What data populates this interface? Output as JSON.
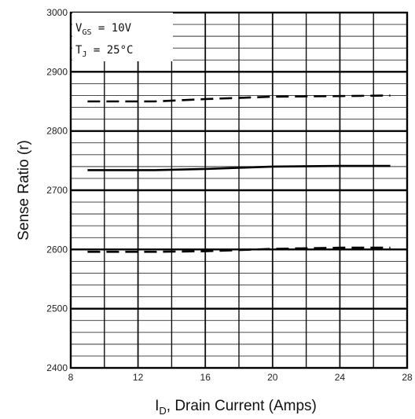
{
  "chart_data": {
    "type": "line",
    "title": "",
    "xlabel": {
      "main": "I",
      "sub": "D",
      "rest": ", Drain Current (Amps)"
    },
    "ylabel": "Sense Ratio (r)",
    "xlim": [
      8,
      28
    ],
    "ylim": [
      2400,
      3000
    ],
    "x_ticks": [
      8,
      12,
      16,
      20,
      24,
      28
    ],
    "x_tick_labels": [
      "8",
      "12",
      "16",
      "20",
      "24",
      "28"
    ],
    "y_ticks": [
      2400,
      2500,
      2600,
      2700,
      2800,
      2900,
      3000
    ],
    "y_tick_labels": [
      "2400",
      "2500",
      "2600",
      "2700",
      "2800",
      "2900",
      "3000"
    ],
    "grid": true,
    "annotations": [
      {
        "main": "V",
        "sub": "GS",
        "rest": " = 10V"
      },
      {
        "main": "T",
        "sub": "J",
        "rest": " = 25°C"
      }
    ],
    "series": [
      {
        "style": "dashed",
        "x": [
          9,
          13,
          16,
          20,
          24,
          27
        ],
        "y": [
          2850,
          2850,
          2854,
          2858,
          2859,
          2860
        ]
      },
      {
        "style": "solid",
        "x": [
          9,
          13,
          16,
          20,
          24,
          27
        ],
        "y": [
          2734,
          2734,
          2736,
          2740,
          2741,
          2741
        ]
      },
      {
        "style": "dashed",
        "x": [
          9,
          13,
          16,
          20,
          24,
          27
        ],
        "y": [
          2596,
          2596,
          2597,
          2601,
          2603,
          2603
        ]
      }
    ],
    "colors": {
      "line": "#000000",
      "grid": "#000000"
    }
  }
}
